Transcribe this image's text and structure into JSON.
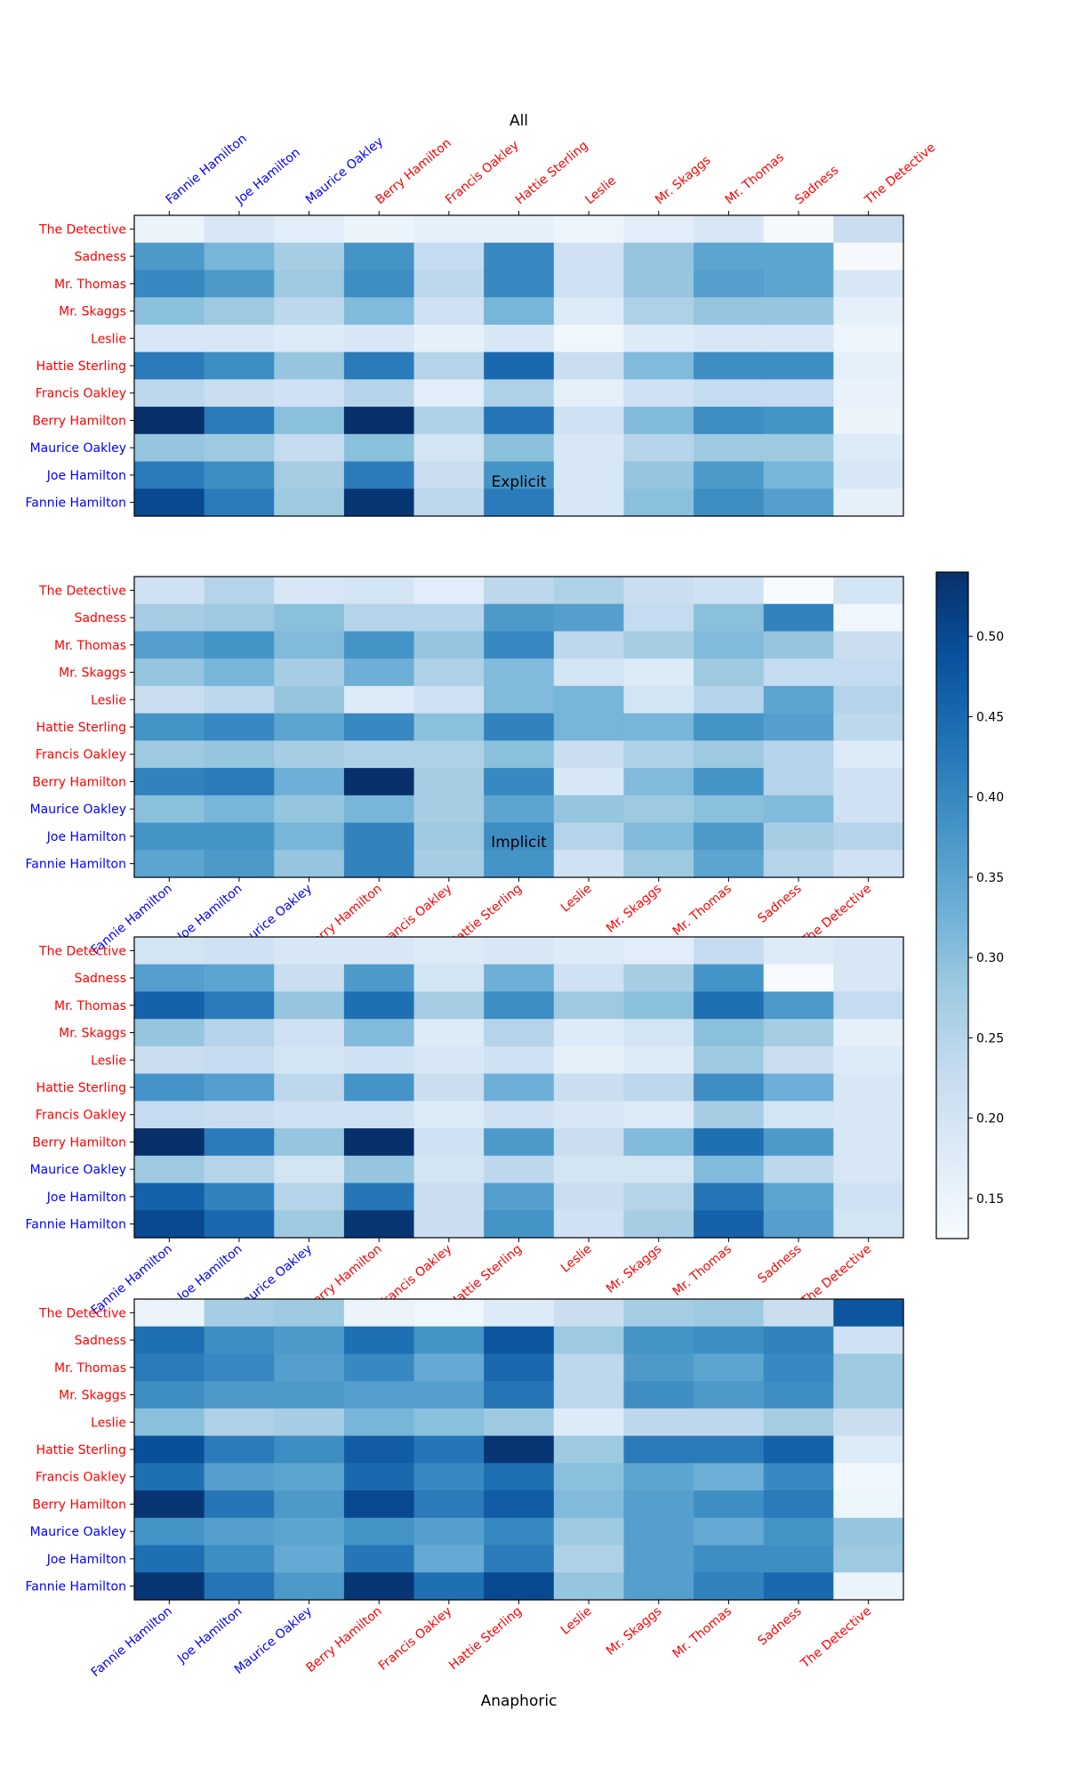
{
  "chart_data": {
    "type": "heatmap",
    "colormap": "Blues",
    "colorbar": {
      "vmin": 0.125,
      "vmax": 0.54,
      "ticks": [
        0.15,
        0.2,
        0.25,
        0.3,
        0.35,
        0.4,
        0.45,
        0.5
      ],
      "tick_labels": [
        "0.15",
        "0.20",
        "0.25",
        "0.30",
        "0.35",
        "0.40",
        "0.45",
        "0.50"
      ]
    },
    "label_colors": {
      "blue": "#0000ff",
      "red": "#ff0000"
    },
    "columns": [
      {
        "name": "Fannie Hamilton",
        "color": "blue"
      },
      {
        "name": "Joe Hamilton",
        "color": "blue"
      },
      {
        "name": "Maurice Oakley",
        "color": "blue"
      },
      {
        "name": "Berry Hamilton",
        "color": "red"
      },
      {
        "name": "Francis Oakley",
        "color": "red"
      },
      {
        "name": "Hattie Sterling",
        "color": "red"
      },
      {
        "name": "Leslie",
        "color": "red"
      },
      {
        "name": "Mr. Skaggs",
        "color": "red"
      },
      {
        "name": "Mr. Thomas",
        "color": "red"
      },
      {
        "name": "Sadness",
        "color": "red"
      },
      {
        "name": "The Detective",
        "color": "red"
      }
    ],
    "rows": [
      {
        "name": "The Detective",
        "color": "red"
      },
      {
        "name": "Sadness",
        "color": "red"
      },
      {
        "name": "Mr. Thomas",
        "color": "red"
      },
      {
        "name": "Mr. Skaggs",
        "color": "red"
      },
      {
        "name": "Leslie",
        "color": "red"
      },
      {
        "name": "Hattie Sterling",
        "color": "red"
      },
      {
        "name": "Francis Oakley",
        "color": "red"
      },
      {
        "name": "Berry Hamilton",
        "color": "red"
      },
      {
        "name": "Maurice Oakley",
        "color": "blue"
      },
      {
        "name": "Joe Hamilton",
        "color": "blue"
      },
      {
        "name": "Fannie Hamilton",
        "color": "blue"
      }
    ],
    "panels": [
      {
        "title": "All",
        "xlabel": "",
        "x_tick_position": "top",
        "values": [
          [
            0.15,
            0.19,
            0.17,
            0.15,
            0.16,
            0.16,
            0.145,
            0.17,
            0.19,
            0.13,
            0.22
          ],
          [
            0.37,
            0.32,
            0.27,
            0.38,
            0.23,
            0.4,
            0.21,
            0.29,
            0.35,
            0.35,
            0.13
          ],
          [
            0.4,
            0.37,
            0.28,
            0.39,
            0.24,
            0.4,
            0.21,
            0.29,
            0.36,
            0.35,
            0.19
          ],
          [
            0.3,
            0.28,
            0.24,
            0.31,
            0.21,
            0.32,
            0.18,
            0.26,
            0.29,
            0.29,
            0.16
          ],
          [
            0.19,
            0.19,
            0.18,
            0.19,
            0.16,
            0.19,
            0.14,
            0.18,
            0.19,
            0.19,
            0.145
          ],
          [
            0.42,
            0.39,
            0.29,
            0.42,
            0.25,
            0.45,
            0.22,
            0.31,
            0.39,
            0.39,
            0.16
          ],
          [
            0.24,
            0.22,
            0.21,
            0.25,
            0.17,
            0.26,
            0.165,
            0.21,
            0.23,
            0.23,
            0.155
          ],
          [
            0.54,
            0.42,
            0.3,
            0.54,
            0.26,
            0.43,
            0.21,
            0.31,
            0.39,
            0.38,
            0.15
          ],
          [
            0.29,
            0.28,
            0.23,
            0.3,
            0.2,
            0.3,
            0.19,
            0.25,
            0.28,
            0.28,
            0.18
          ],
          [
            0.42,
            0.39,
            0.27,
            0.42,
            0.22,
            0.38,
            0.19,
            0.29,
            0.37,
            0.32,
            0.19
          ],
          [
            0.5,
            0.42,
            0.28,
            0.53,
            0.24,
            0.42,
            0.19,
            0.3,
            0.39,
            0.36,
            0.16
          ]
        ]
      },
      {
        "title": "Explicit",
        "xlabel": "",
        "x_tick_position": "bottom",
        "values": [
          [
            0.21,
            0.25,
            0.19,
            0.2,
            0.17,
            0.24,
            0.26,
            0.22,
            0.21,
            0.125,
            0.2
          ],
          [
            0.27,
            0.28,
            0.3,
            0.25,
            0.25,
            0.37,
            0.36,
            0.23,
            0.3,
            0.41,
            0.14
          ],
          [
            0.36,
            0.38,
            0.31,
            0.38,
            0.29,
            0.4,
            0.24,
            0.27,
            0.31,
            0.29,
            0.22
          ],
          [
            0.29,
            0.32,
            0.27,
            0.33,
            0.26,
            0.31,
            0.2,
            0.18,
            0.28,
            0.23,
            0.23
          ],
          [
            0.22,
            0.24,
            0.29,
            0.18,
            0.21,
            0.31,
            0.32,
            0.2,
            0.25,
            0.35,
            0.25
          ],
          [
            0.38,
            0.4,
            0.35,
            0.4,
            0.3,
            0.41,
            0.32,
            0.32,
            0.38,
            0.36,
            0.24
          ],
          [
            0.28,
            0.29,
            0.27,
            0.26,
            0.26,
            0.3,
            0.22,
            0.26,
            0.28,
            0.25,
            0.18
          ],
          [
            0.41,
            0.42,
            0.33,
            0.54,
            0.27,
            0.4,
            0.19,
            0.31,
            0.38,
            0.25,
            0.21
          ],
          [
            0.3,
            0.32,
            0.29,
            0.32,
            0.27,
            0.35,
            0.29,
            0.28,
            0.3,
            0.31,
            0.21
          ],
          [
            0.38,
            0.38,
            0.32,
            0.41,
            0.28,
            0.39,
            0.25,
            0.31,
            0.37,
            0.27,
            0.25
          ],
          [
            0.35,
            0.37,
            0.29,
            0.41,
            0.27,
            0.38,
            0.21,
            0.28,
            0.35,
            0.25,
            0.21
          ]
        ]
      },
      {
        "title": "Implicit",
        "xlabel": "",
        "x_tick_position": "bottom",
        "values": [
          [
            0.2,
            0.21,
            0.19,
            0.19,
            0.18,
            0.19,
            0.18,
            0.17,
            0.23,
            0.18,
            0.19
          ],
          [
            0.36,
            0.35,
            0.22,
            0.37,
            0.2,
            0.33,
            0.21,
            0.27,
            0.38,
            0.125,
            0.19
          ],
          [
            0.46,
            0.42,
            0.29,
            0.44,
            0.27,
            0.39,
            0.28,
            0.3,
            0.44,
            0.37,
            0.23
          ],
          [
            0.29,
            0.25,
            0.21,
            0.31,
            0.18,
            0.25,
            0.18,
            0.2,
            0.3,
            0.27,
            0.16
          ],
          [
            0.22,
            0.23,
            0.2,
            0.21,
            0.19,
            0.21,
            0.16,
            0.18,
            0.28,
            0.22,
            0.18
          ],
          [
            0.38,
            0.36,
            0.24,
            0.38,
            0.22,
            0.33,
            0.22,
            0.24,
            0.39,
            0.33,
            0.19
          ],
          [
            0.23,
            0.22,
            0.21,
            0.21,
            0.18,
            0.21,
            0.19,
            0.18,
            0.27,
            0.2,
            0.19
          ],
          [
            0.54,
            0.42,
            0.29,
            0.54,
            0.21,
            0.37,
            0.22,
            0.31,
            0.44,
            0.37,
            0.19
          ],
          [
            0.28,
            0.25,
            0.2,
            0.29,
            0.2,
            0.24,
            0.2,
            0.2,
            0.31,
            0.24,
            0.19
          ],
          [
            0.46,
            0.41,
            0.25,
            0.43,
            0.22,
            0.36,
            0.22,
            0.25,
            0.43,
            0.35,
            0.21
          ],
          [
            0.5,
            0.45,
            0.28,
            0.53,
            0.22,
            0.38,
            0.21,
            0.27,
            0.46,
            0.36,
            0.2
          ]
        ]
      },
      {
        "title": "",
        "xlabel": "Anaphoric",
        "x_tick_position": "bottom",
        "values": [
          [
            0.15,
            0.27,
            0.28,
            0.15,
            0.14,
            0.18,
            0.22,
            0.27,
            0.28,
            0.22,
            0.48
          ],
          [
            0.44,
            0.39,
            0.37,
            0.44,
            0.38,
            0.48,
            0.28,
            0.38,
            0.39,
            0.41,
            0.21
          ],
          [
            0.42,
            0.4,
            0.36,
            0.4,
            0.34,
            0.45,
            0.24,
            0.37,
            0.35,
            0.4,
            0.28
          ],
          [
            0.39,
            0.37,
            0.37,
            0.36,
            0.36,
            0.43,
            0.24,
            0.39,
            0.37,
            0.39,
            0.28
          ],
          [
            0.3,
            0.26,
            0.27,
            0.32,
            0.3,
            0.28,
            0.18,
            0.24,
            0.24,
            0.27,
            0.22
          ],
          [
            0.49,
            0.42,
            0.39,
            0.47,
            0.43,
            0.53,
            0.28,
            0.42,
            0.42,
            0.46,
            0.18
          ],
          [
            0.44,
            0.36,
            0.35,
            0.45,
            0.4,
            0.44,
            0.3,
            0.35,
            0.33,
            0.4,
            0.14
          ],
          [
            0.53,
            0.43,
            0.37,
            0.5,
            0.42,
            0.47,
            0.31,
            0.36,
            0.39,
            0.42,
            0.145
          ],
          [
            0.38,
            0.36,
            0.35,
            0.38,
            0.36,
            0.4,
            0.28,
            0.36,
            0.34,
            0.38,
            0.29
          ],
          [
            0.44,
            0.39,
            0.34,
            0.43,
            0.34,
            0.42,
            0.26,
            0.36,
            0.39,
            0.39,
            0.28
          ],
          [
            0.53,
            0.43,
            0.37,
            0.53,
            0.44,
            0.5,
            0.29,
            0.36,
            0.41,
            0.45,
            0.15
          ]
        ]
      }
    ]
  }
}
